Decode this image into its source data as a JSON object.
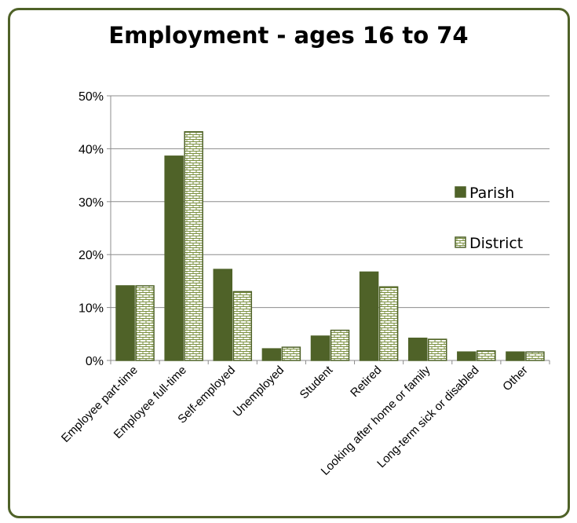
{
  "chart_data": {
    "type": "bar",
    "title": "Employment - ages 16 to 74",
    "xlabel": "",
    "ylabel": "",
    "ylim": [
      0,
      0.5
    ],
    "yticks": [
      "0%",
      "10%",
      "20%",
      "30%",
      "40%",
      "50%"
    ],
    "y_tick_values": [
      0,
      0.1,
      0.2,
      0.3,
      0.4,
      0.5
    ],
    "grid": true,
    "legend_position": "right",
    "categories": [
      "Employee part-time",
      "Employee full-time",
      "Self-employed",
      "Unemployed",
      "Student",
      "Retired",
      "Looking after home or family",
      "Long-term sick or disabled",
      "Other"
    ],
    "series": [
      {
        "name": "Parish",
        "pattern": "solid",
        "color": "#4f6228",
        "values": [
          0.141,
          0.386,
          0.172,
          0.022,
          0.046,
          0.167,
          0.042,
          0.016,
          0.016
        ]
      },
      {
        "name": "District",
        "pattern": "brick",
        "color": "#4f6228",
        "values": [
          0.141,
          0.432,
          0.13,
          0.025,
          0.057,
          0.139,
          0.04,
          0.018,
          0.016
        ]
      }
    ]
  }
}
